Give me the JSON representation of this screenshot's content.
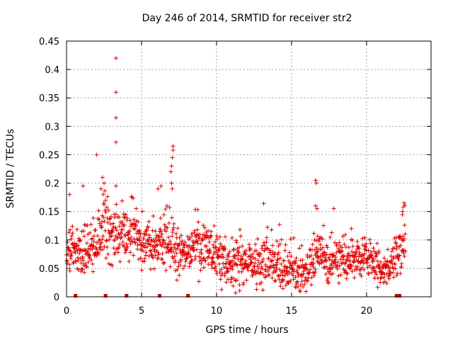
{
  "chart_data": {
    "type": "scatter",
    "title": "Day 246 of 2014, SRMTID for receiver str2",
    "xlabel": "GPS time / hours",
    "ylabel": "SRMTID / TECUs",
    "xlim": [
      0,
      24.3
    ],
    "ylim": [
      0,
      0.45
    ],
    "xticks": [
      0,
      5,
      10,
      15,
      20
    ],
    "xtick_labels": [
      "0",
      "5",
      "10",
      "15",
      "20"
    ],
    "yticks": [
      0,
      0.05,
      0.1,
      0.15,
      0.2,
      0.25,
      0.3,
      0.35,
      0.4,
      0.45
    ],
    "ytick_labels": [
      "0",
      "0.05",
      "0.1",
      "0.15",
      "0.2",
      "0.25",
      "0.3",
      "0.35",
      "0.4",
      "0.45"
    ],
    "grid": true,
    "marker": "plus",
    "series_color": "#e00000",
    "density_profile": {
      "x": [
        0,
        0.5,
        1,
        1.5,
        2,
        2.5,
        3,
        3.5,
        4,
        4.5,
        5,
        5.5,
        6,
        6.5,
        7,
        7.5,
        8,
        8.5,
        9,
        9.5,
        10,
        10.5,
        11,
        11.5,
        12,
        12.5,
        13,
        13.5,
        14,
        14.5,
        15,
        15.5,
        16,
        16.5,
        17,
        17.5,
        18,
        18.5,
        19,
        19.5,
        20,
        20.5,
        21,
        21.5,
        22,
        22.5
      ],
      "median": [
        0.075,
        0.08,
        0.085,
        0.085,
        0.09,
        0.13,
        0.12,
        0.11,
        0.11,
        0.125,
        0.09,
        0.09,
        0.08,
        0.11,
        0.09,
        0.07,
        0.075,
        0.08,
        0.09,
        0.08,
        0.07,
        0.065,
        0.055,
        0.055,
        0.06,
        0.05,
        0.06,
        0.06,
        0.055,
        0.05,
        0.045,
        0.04,
        0.045,
        0.07,
        0.075,
        0.06,
        0.07,
        0.07,
        0.065,
        0.065,
        0.07,
        0.065,
        0.05,
        0.05,
        0.08,
        0.09
      ],
      "spread": [
        0.03,
        0.035,
        0.04,
        0.04,
        0.045,
        0.045,
        0.045,
        0.045,
        0.04,
        0.04,
        0.035,
        0.035,
        0.035,
        0.045,
        0.045,
        0.035,
        0.035,
        0.04,
        0.04,
        0.04,
        0.035,
        0.035,
        0.035,
        0.035,
        0.04,
        0.035,
        0.04,
        0.04,
        0.035,
        0.035,
        0.035,
        0.03,
        0.035,
        0.04,
        0.035,
        0.035,
        0.035,
        0.035,
        0.035,
        0.035,
        0.035,
        0.035,
        0.03,
        0.03,
        0.035,
        0.04
      ],
      "t_start": 0.0,
      "t_end": 22.6,
      "step_hours": 0.017
    },
    "outliers": [
      {
        "x": 3.3,
        "y": 0.42
      },
      {
        "x": 3.3,
        "y": 0.36
      },
      {
        "x": 3.3,
        "y": 0.315
      },
      {
        "x": 3.3,
        "y": 0.272
      },
      {
        "x": 2.0,
        "y": 0.25
      },
      {
        "x": 7.1,
        "y": 0.265
      },
      {
        "x": 7.1,
        "y": 0.258
      },
      {
        "x": 7.05,
        "y": 0.245
      },
      {
        "x": 7.0,
        "y": 0.23
      },
      {
        "x": 6.95,
        "y": 0.22
      },
      {
        "x": 7.0,
        "y": 0.2
      },
      {
        "x": 7.05,
        "y": 0.19
      },
      {
        "x": 2.4,
        "y": 0.21
      },
      {
        "x": 2.5,
        "y": 0.2
      },
      {
        "x": 2.3,
        "y": 0.19
      },
      {
        "x": 3.3,
        "y": 0.195
      },
      {
        "x": 16.6,
        "y": 0.205
      },
      {
        "x": 16.65,
        "y": 0.2
      },
      {
        "x": 16.6,
        "y": 0.16
      },
      {
        "x": 16.7,
        "y": 0.155
      },
      {
        "x": 6.3,
        "y": 0.195
      },
      {
        "x": 6.1,
        "y": 0.19
      },
      {
        "x": 1.1,
        "y": 0.195
      },
      {
        "x": 0.2,
        "y": 0.18
      },
      {
        "x": 22.5,
        "y": 0.165
      },
      {
        "x": 22.45,
        "y": 0.158
      },
      {
        "x": 22.4,
        "y": 0.15
      }
    ],
    "gaps": [
      {
        "x": 0.6,
        "y": 0.0
      },
      {
        "x": 2.6,
        "y": 0.0
      },
      {
        "x": 4.0,
        "y": 0.0
      },
      {
        "x": 6.2,
        "y": 0.0
      },
      {
        "x": 8.1,
        "y": 0.0
      },
      {
        "x": 22.0,
        "y": 0.0
      },
      {
        "x": 22.1,
        "y": 0.0
      },
      {
        "x": 22.2,
        "y": 0.0
      }
    ]
  }
}
